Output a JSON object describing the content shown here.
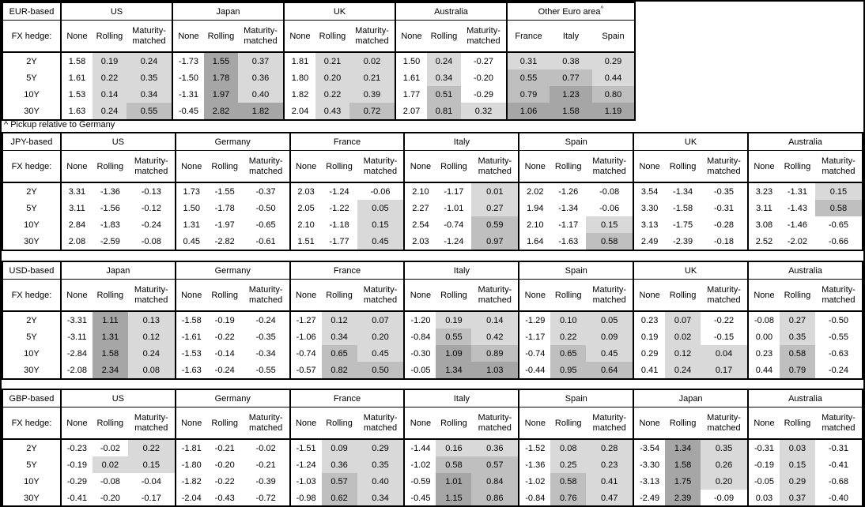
{
  "footnote": "^ Pickup relative to Germany",
  "labels": {
    "fx_hedge": "FX hedge:",
    "maturities": [
      "2Y",
      "5Y",
      "10Y",
      "30Y"
    ],
    "hedge_columns": [
      "None",
      "Rolling",
      "Maturity-matched"
    ]
  },
  "colors": {
    "background": "#FFFFFF",
    "border": "#000000",
    "shade_light": "#D9D9D9",
    "shade_medium": "#BFBFBF",
    "shade_dark": "#A6A6A6"
  },
  "shading": {
    "rule": "cells in shaded columns: value < 0 white, 0 to 0.5 light, 0.5 to 1 medium, >= 1 dark",
    "light_min": 0,
    "medium_min": 0.5,
    "dark_min": 1.0
  },
  "tables": [
    {
      "base_label": "EUR-based",
      "groups": [
        {
          "name": "US",
          "rows": [
            [
              "1.58",
              "0.19",
              "0.24"
            ],
            [
              "1.61",
              "0.22",
              "0.35"
            ],
            [
              "1.53",
              "0.14",
              "0.34"
            ],
            [
              "1.63",
              "0.24",
              "0.55"
            ]
          ]
        },
        {
          "name": "Japan",
          "rows": [
            [
              "-1.73",
              "1.55",
              "0.37"
            ],
            [
              "-1.50",
              "1.78",
              "0.36"
            ],
            [
              "-1.31",
              "1.97",
              "0.40"
            ],
            [
              "-0.45",
              "2.82",
              "1.82"
            ]
          ]
        },
        {
          "name": "UK",
          "rows": [
            [
              "1.81",
              "0.21",
              "0.02"
            ],
            [
              "1.80",
              "0.20",
              "0.21"
            ],
            [
              "1.82",
              "0.22",
              "0.39"
            ],
            [
              "2.04",
              "0.43",
              "0.72"
            ]
          ]
        },
        {
          "name": "Australia",
          "rows": [
            [
              "1.50",
              "0.24",
              "-0.27"
            ],
            [
              "1.61",
              "0.34",
              "-0.20"
            ],
            [
              "1.77",
              "0.51",
              "-0.29"
            ],
            [
              "2.07",
              "0.81",
              "0.32"
            ]
          ]
        },
        {
          "name": "Other Euro area",
          "superscript": "^",
          "columns": [
            "France",
            "Italy",
            "Spain"
          ],
          "shade_columns": [
            0,
            1,
            2
          ],
          "rows": [
            [
              "0.31",
              "0.38",
              "0.29"
            ],
            [
              "0.55",
              "0.77",
              "0.44"
            ],
            [
              "0.79",
              "1.23",
              "0.80"
            ],
            [
              "1.06",
              "1.58",
              "1.19"
            ]
          ]
        }
      ]
    },
    {
      "base_label": "JPY-based",
      "groups": [
        {
          "name": "US",
          "rows": [
            [
              "3.31",
              "-1.36",
              "-0.13"
            ],
            [
              "3.11",
              "-1.56",
              "-0.12"
            ],
            [
              "2.84",
              "-1.83",
              "-0.24"
            ],
            [
              "2.08",
              "-2.59",
              "-0.08"
            ]
          ]
        },
        {
          "name": "Germany",
          "rows": [
            [
              "1.73",
              "-1.55",
              "-0.37"
            ],
            [
              "1.50",
              "-1.78",
              "-0.50"
            ],
            [
              "1.31",
              "-1.97",
              "-0.65"
            ],
            [
              "0.45",
              "-2.82",
              "-0.61"
            ]
          ]
        },
        {
          "name": "France",
          "rows": [
            [
              "2.03",
              "-1.24",
              "-0.06"
            ],
            [
              "2.05",
              "-1.22",
              "0.05"
            ],
            [
              "2.10",
              "-1.18",
              "0.15"
            ],
            [
              "1.51",
              "-1.77",
              "0.45"
            ]
          ]
        },
        {
          "name": "Italy",
          "rows": [
            [
              "2.10",
              "-1.17",
              "0.01"
            ],
            [
              "2.27",
              "-1.01",
              "0.27"
            ],
            [
              "2.54",
              "-0.74",
              "0.59"
            ],
            [
              "2.03",
              "-1.24",
              "0.97"
            ]
          ]
        },
        {
          "name": "Spain",
          "rows": [
            [
              "2.02",
              "-1.26",
              "-0.08"
            ],
            [
              "1.94",
              "-1.34",
              "-0.06"
            ],
            [
              "2.10",
              "-1.17",
              "0.15"
            ],
            [
              "1.64",
              "-1.63",
              "0.58"
            ]
          ]
        },
        {
          "name": "UK",
          "rows": [
            [
              "3.54",
              "-1.34",
              "-0.35"
            ],
            [
              "3.30",
              "-1.58",
              "-0.31"
            ],
            [
              "3.13",
              "-1.75",
              "-0.28"
            ],
            [
              "2.49",
              "-2.39",
              "-0.18"
            ]
          ]
        },
        {
          "name": "Australia",
          "rows": [
            [
              "3.23",
              "-1.31",
              "0.15"
            ],
            [
              "3.11",
              "-1.43",
              "0.58"
            ],
            [
              "3.08",
              "-1.46",
              "-0.65"
            ],
            [
              "2.52",
              "-2.02",
              "-0.66"
            ]
          ]
        }
      ]
    },
    {
      "base_label": "USD-based",
      "groups": [
        {
          "name": "Japan",
          "rows": [
            [
              "-3.31",
              "1.11",
              "0.13"
            ],
            [
              "-3.11",
              "1.31",
              "0.12"
            ],
            [
              "-2.84",
              "1.58",
              "0.24"
            ],
            [
              "-2.08",
              "2.34",
              "0.08"
            ]
          ]
        },
        {
          "name": "Germany",
          "rows": [
            [
              "-1.58",
              "-0.19",
              "-0.24"
            ],
            [
              "-1.61",
              "-0.22",
              "-0.35"
            ],
            [
              "-1.53",
              "-0.14",
              "-0.34"
            ],
            [
              "-1.63",
              "-0.24",
              "-0.55"
            ]
          ]
        },
        {
          "name": "France",
          "rows": [
            [
              "-1.27",
              "0.12",
              "0.07"
            ],
            [
              "-1.06",
              "0.34",
              "0.20"
            ],
            [
              "-0.74",
              "0.65",
              "0.45"
            ],
            [
              "-0.57",
              "0.82",
              "0.50"
            ]
          ]
        },
        {
          "name": "Italy",
          "rows": [
            [
              "-1.20",
              "0.19",
              "0.14"
            ],
            [
              "-0.84",
              "0.55",
              "0.42"
            ],
            [
              "-0.30",
              "1.09",
              "0.89"
            ],
            [
              "-0.05",
              "1.34",
              "1.03"
            ]
          ]
        },
        {
          "name": "Spain",
          "rows": [
            [
              "-1.29",
              "0.10",
              "0.05"
            ],
            [
              "-1.17",
              "0.22",
              "0.09"
            ],
            [
              "-0.74",
              "0.65",
              "0.45"
            ],
            [
              "-0.44",
              "0.95",
              "0.64"
            ]
          ]
        },
        {
          "name": "UK",
          "rows": [
            [
              "0.23",
              "0.07",
              "-0.22"
            ],
            [
              "0.19",
              "0.02",
              "-0.15"
            ],
            [
              "0.29",
              "0.12",
              "0.04"
            ],
            [
              "0.41",
              "0.24",
              "0.17"
            ]
          ]
        },
        {
          "name": "Australia",
          "rows": [
            [
              "-0.08",
              "0.27",
              "-0.50"
            ],
            [
              "0.00",
              "0.35",
              "-0.55"
            ],
            [
              "0.23",
              "0.58",
              "-0.63"
            ],
            [
              "0.44",
              "0.79",
              "-0.24"
            ]
          ]
        }
      ]
    },
    {
      "base_label": "GBP-based",
      "groups": [
        {
          "name": "US",
          "rows": [
            [
              "-0.23",
              "-0.02",
              "0.22"
            ],
            [
              "-0.19",
              "0.02",
              "0.15"
            ],
            [
              "-0.29",
              "-0.08",
              "-0.04"
            ],
            [
              "-0.41",
              "-0.20",
              "-0.17"
            ]
          ]
        },
        {
          "name": "Germany",
          "rows": [
            [
              "-1.81",
              "-0.21",
              "-0.02"
            ],
            [
              "-1.80",
              "-0.20",
              "-0.21"
            ],
            [
              "-1.82",
              "-0.22",
              "-0.39"
            ],
            [
              "-2.04",
              "-0.43",
              "-0.72"
            ]
          ]
        },
        {
          "name": "France",
          "rows": [
            [
              "-1.51",
              "0.09",
              "0.29"
            ],
            [
              "-1.24",
              "0.36",
              "0.35"
            ],
            [
              "-1.03",
              "0.57",
              "0.40"
            ],
            [
              "-0.98",
              "0.62",
              "0.34"
            ]
          ]
        },
        {
          "name": "Italy",
          "rows": [
            [
              "-1.44",
              "0.16",
              "0.36"
            ],
            [
              "-1.02",
              "0.58",
              "0.57"
            ],
            [
              "-0.59",
              "1.01",
              "0.84"
            ],
            [
              "-0.45",
              "1.15",
              "0.86"
            ]
          ]
        },
        {
          "name": "Spain",
          "rows": [
            [
              "-1.52",
              "0.08",
              "0.28"
            ],
            [
              "-1.36",
              "0.25",
              "0.23"
            ],
            [
              "-1.02",
              "0.58",
              "0.41"
            ],
            [
              "-0.84",
              "0.76",
              "0.47"
            ]
          ]
        },
        {
          "name": "Japan",
          "rows": [
            [
              "-3.54",
              "1.34",
              "0.35"
            ],
            [
              "-3.30",
              "1.58",
              "0.26"
            ],
            [
              "-3.13",
              "1.75",
              "0.20"
            ],
            [
              "-2.49",
              "2.39",
              "-0.09"
            ]
          ]
        },
        {
          "name": "Australia",
          "rows": [
            [
              "-0.31",
              "0.03",
              "-0.31"
            ],
            [
              "-0.19",
              "0.15",
              "-0.41"
            ],
            [
              "-0.05",
              "0.29",
              "-0.68"
            ],
            [
              "0.03",
              "0.37",
              "-0.40"
            ]
          ]
        }
      ]
    }
  ]
}
